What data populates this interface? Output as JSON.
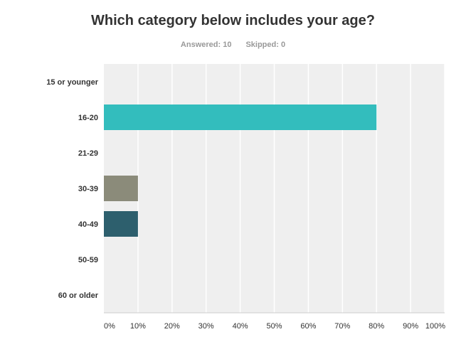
{
  "header": {
    "title": "Which category below includes your age?",
    "answered": "Answered: 10",
    "skipped": "Skipped: 0"
  },
  "colors": {
    "plot_background": "#efefef",
    "gridline": "#ffffff",
    "axis_line": "#cccccc",
    "label_text": "#333333"
  },
  "chart_data": {
    "type": "bar",
    "orientation": "horizontal",
    "categories": [
      "15 or younger",
      "16-20",
      "21-29",
      "30-39",
      "40-49",
      "50-59",
      "60 or older"
    ],
    "values": [
      0,
      80,
      0,
      10,
      10,
      0,
      0
    ],
    "bar_colors": [
      "#37bcb8",
      "#33bdbd",
      "#c9b04d",
      "#8b8b7a",
      "#2d5f6d",
      "#7a5c8a",
      "#c4635a"
    ],
    "x_ticks": [
      "0%",
      "10%",
      "20%",
      "30%",
      "40%",
      "50%",
      "60%",
      "70%",
      "80%",
      "90%",
      "100%"
    ],
    "xlim": [
      0,
      100
    ],
    "grid": true
  }
}
